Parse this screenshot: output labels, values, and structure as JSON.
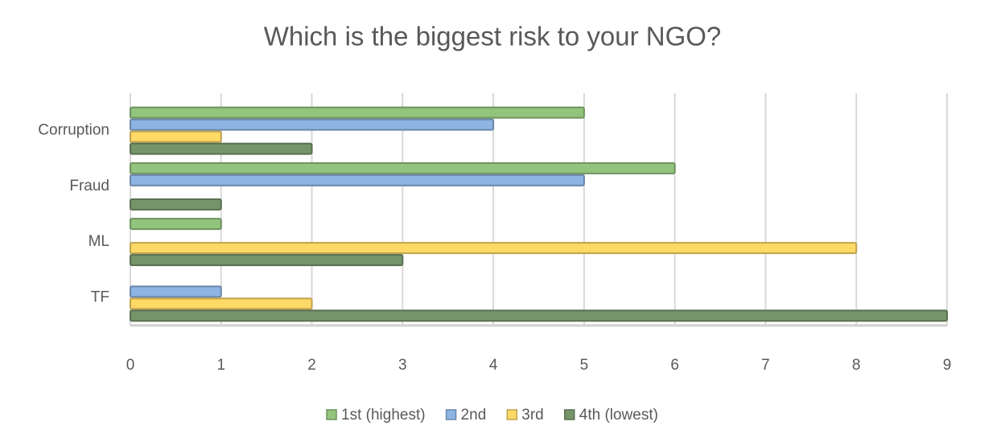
{
  "chart_data": {
    "type": "bar",
    "orientation": "horizontal",
    "title": "Which is the biggest risk to your NGO?",
    "categories": [
      "Corruption",
      "Fraud",
      "ML",
      "TF"
    ],
    "series": [
      {
        "name": "1st (highest)",
        "color": "#93c47d",
        "values": [
          5,
          6,
          1,
          0
        ]
      },
      {
        "name": "2nd",
        "color": "#8db4e2",
        "values": [
          4,
          5,
          0,
          1
        ]
      },
      {
        "name": "3rd",
        "color": "#ffd966",
        "values": [
          1,
          0,
          8,
          2
        ]
      },
      {
        "name": "4th (lowest)",
        "color": "#76946a",
        "values": [
          2,
          1,
          3,
          9
        ]
      }
    ],
    "xlim": [
      0,
      9
    ],
    "xticks": [
      0,
      1,
      2,
      3,
      4,
      5,
      6,
      7,
      8,
      9
    ],
    "grid": true,
    "legend": "bottom"
  }
}
